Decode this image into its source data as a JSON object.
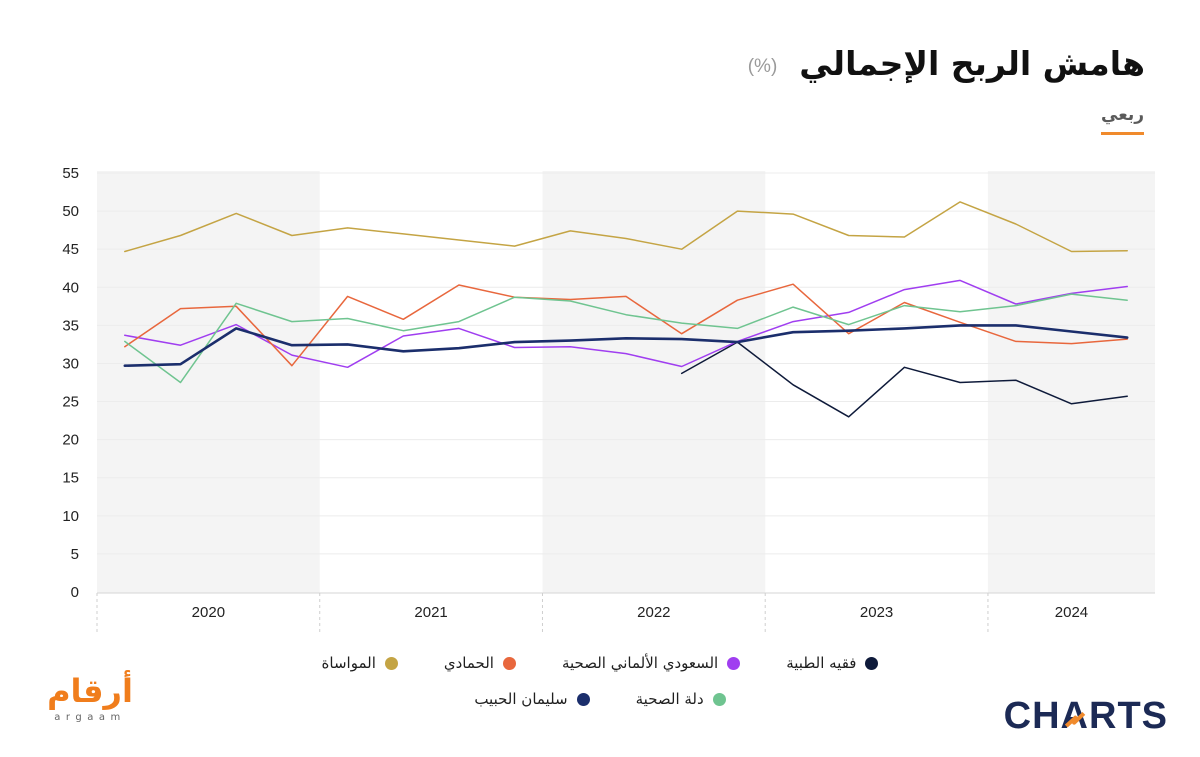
{
  "controls": {
    "period_tab": "ربعي"
  },
  "colors": {
    "accent": "#f08a2c",
    "band": "#f4f4f4",
    "grid": "#ececec",
    "axis": "#d6d6d6",
    "divider": "#cfcfcf",
    "argaam_orange": "#f07d1c",
    "charts_navy": "#1c2a55"
  },
  "chart_data": {
    "type": "line",
    "title": "هامش الربح الإجمالي",
    "unit": "(%)",
    "x": [
      "2020",
      "2020",
      "2020",
      "2020",
      "2021",
      "2021",
      "2021",
      "2021",
      "2022",
      "2022",
      "2022",
      "2022",
      "2023",
      "2023",
      "2023",
      "2023",
      "2024",
      "2024",
      "2024"
    ],
    "ylim": [
      0,
      55
    ],
    "ytick_step": 5,
    "grid": true,
    "shaded_alternate_years": true,
    "legend_position": "bottom",
    "series": [
      {
        "name": "فقيه الطبية",
        "color": "#0e1a3a",
        "values": [
          null,
          null,
          null,
          null,
          null,
          null,
          null,
          null,
          null,
          null,
          28.7,
          32.8,
          27.2,
          23.0,
          29.5,
          27.5,
          27.8,
          24.7,
          25.7
        ]
      },
      {
        "name": "السعودي الألماني الصحية",
        "color": "#a03ef0",
        "values": [
          33.7,
          32.4,
          35.1,
          31.1,
          29.5,
          33.6,
          34.6,
          32.1,
          32.2,
          31.3,
          29.6,
          32.9,
          35.5,
          36.7,
          39.7,
          40.9,
          37.8,
          39.2,
          40.1
        ]
      },
      {
        "name": "الحمادي",
        "color": "#e8673d",
        "values": [
          32.2,
          37.2,
          37.5,
          29.7,
          38.8,
          35.8,
          40.3,
          38.7,
          38.4,
          38.8,
          33.9,
          38.3,
          40.4,
          33.9,
          38.0,
          35.4,
          32.9,
          32.6,
          33.2
        ]
      },
      {
        "name": "المواساة",
        "color": "#c4a444",
        "values": [
          44.7,
          46.8,
          49.7,
          46.8,
          47.8,
          47.0,
          46.2,
          45.4,
          47.4,
          46.4,
          45.0,
          50.0,
          49.6,
          46.8,
          46.6,
          51.2,
          48.3,
          44.7,
          44.8
        ]
      },
      {
        "name": "دلة الصحية",
        "color": "#6fc490",
        "values": [
          32.9,
          27.5,
          37.9,
          35.5,
          35.9,
          34.3,
          35.5,
          38.7,
          38.2,
          36.4,
          35.3,
          34.6,
          37.4,
          35.1,
          37.6,
          36.8,
          37.6,
          39.1,
          38.3
        ]
      },
      {
        "name": "سليمان الحبيب",
        "color": "#1b2e6c",
        "emphasized": true,
        "values": [
          29.7,
          29.9,
          34.6,
          32.4,
          32.5,
          31.6,
          32.0,
          32.8,
          33.0,
          33.3,
          33.2,
          32.8,
          34.1,
          34.3,
          34.6,
          35.0,
          35.0,
          34.2,
          33.4
        ]
      }
    ]
  },
  "logos": {
    "argaam_ar": "أرقام",
    "argaam_en": "argaam",
    "charts": "CHARTS"
  }
}
